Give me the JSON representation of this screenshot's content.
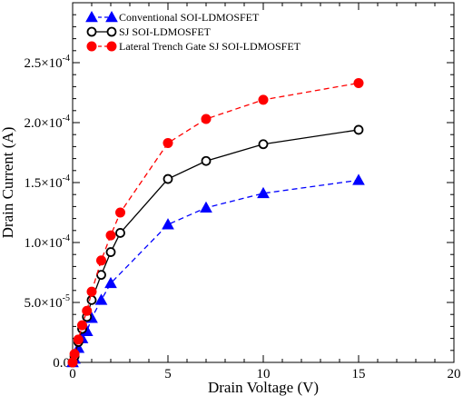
{
  "chart_data": {
    "type": "line",
    "xlabel": "Drain Voltage (V)",
    "ylabel": "Drain Current (A)",
    "xlim": [
      0,
      20
    ],
    "ylim": [
      0,
      0.0003
    ],
    "grid": false,
    "legend_position": "top-left",
    "x_ticks": [
      0,
      5,
      10,
      15,
      20
    ],
    "x_tick_labels": [
      "0",
      "5",
      "10",
      "15",
      "20"
    ],
    "y_ticks": [
      0,
      5e-05,
      0.0001,
      0.00015,
      0.0002,
      0.00025
    ],
    "y_tick_labels": [
      {
        "mantissa": "0.0",
        "exp": ""
      },
      {
        "mantissa": "5.0×10",
        "exp": "-5"
      },
      {
        "mantissa": "1.0×10",
        "exp": "-4"
      },
      {
        "mantissa": "1.5×10",
        "exp": "-4"
      },
      {
        "mantissa": "2.0×10",
        "exp": "-4"
      },
      {
        "mantissa": "2.5×10",
        "exp": "-4"
      }
    ],
    "series": [
      {
        "name": "Conventional SOI-LDMOSFET",
        "color": "#0000ff",
        "line": "dashed",
        "marker": "triangle-filled",
        "x": [
          0,
          0.1,
          0.3,
          0.5,
          0.75,
          1,
          1.5,
          2,
          5,
          7,
          10,
          15
        ],
        "y": [
          0,
          3e-06,
          1.2e-05,
          2e-05,
          2.6e-05,
          3.7e-05,
          5.2e-05,
          6.6e-05,
          0.000115,
          0.000129,
          0.000141,
          0.000152
        ]
      },
      {
        "name": "SJ SOI-LDMOSFET",
        "color": "#000000",
        "line": "solid",
        "marker": "circle-open",
        "x": [
          0,
          0.1,
          0.3,
          0.5,
          0.75,
          1,
          1.5,
          2,
          2.5,
          5,
          7,
          10,
          15
        ],
        "y": [
          0,
          5e-06,
          1.7e-05,
          2.8e-05,
          3.8e-05,
          5.2e-05,
          7.3e-05,
          9.2e-05,
          0.000108,
          0.000153,
          0.000168,
          0.000182,
          0.000194
        ]
      },
      {
        "name": "Lateral Trench Gate SJ SOI-LDMOSFET",
        "color": "#ff0000",
        "line": "dashed",
        "marker": "circle-filled",
        "x": [
          0,
          0.1,
          0.3,
          0.5,
          0.75,
          1,
          1.5,
          2,
          2.5,
          5,
          7,
          10,
          15
        ],
        "y": [
          0,
          7e-06,
          1.9e-05,
          3.1e-05,
          4.3e-05,
          5.9e-05,
          8.5e-05,
          0.000106,
          0.000125,
          0.000183,
          0.000203,
          0.000219,
          0.000233
        ]
      }
    ]
  }
}
